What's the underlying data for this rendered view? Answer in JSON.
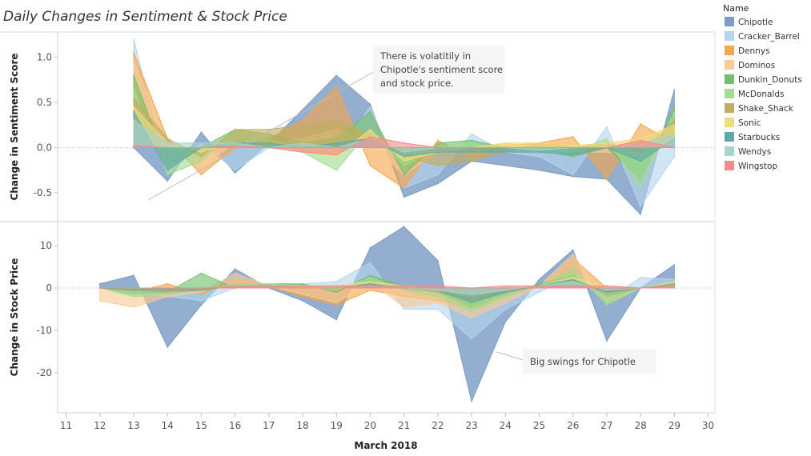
{
  "chart_data": {
    "type": "area",
    "title": "Daily Changes in Sentiment & Stock Price",
    "xlabel": "March 2018",
    "x_ticks": [
      11,
      12,
      13,
      14,
      15,
      16,
      17,
      18,
      19,
      20,
      21,
      22,
      23,
      24,
      25,
      26,
      27,
      28,
      29,
      30
    ],
    "legend_title": "Name",
    "legend_position": "right",
    "series_colors": {
      "Chipotle": "#7b9cc4",
      "Cracker_Barrel": "#b5d5ee",
      "Dennys": "#f5a54a",
      "Dominos": "#f9cc95",
      "Dunkin_Donuts": "#73c06a",
      "McDonalds": "#a3dc8f",
      "Shake_Shack": "#c2ad5f",
      "Sonic": "#f0dc7c",
      "Starbucks": "#5fa8a8",
      "Wendys": "#a7d4ce",
      "Wingstop": "#f28a8a"
    },
    "panels": [
      {
        "ylabel": "Change in Sentiment Score",
        "y_ticks": [
          1.0,
          0.5,
          0.0,
          -0.5
        ],
        "y_tick_labels": [
          "1.0",
          "0.5",
          "0.0",
          "-0.5"
        ],
        "ylim": [
          -0.82,
          1.28
        ],
        "annotation": "There is volatitily in Chipotle's sentiment score and stock price.",
        "x": [
          13,
          14,
          15,
          16,
          17,
          18,
          19,
          20,
          21,
          22,
          23,
          24,
          25,
          26,
          27,
          28,
          29
        ],
        "series": [
          {
            "name": "Chipotle",
            "values": [
              0.0,
              -0.37,
              0.17,
              -0.28,
              0.05,
              0.42,
              0.8,
              0.48,
              -0.55,
              -0.4,
              -0.15,
              -0.2,
              -0.25,
              -0.32,
              -0.35,
              -0.74,
              0.64
            ]
          },
          {
            "name": "Cracker_Barrel",
            "values": [
              1.2,
              -0.3,
              0.05,
              -0.25,
              0.0,
              -0.05,
              -0.08,
              0.45,
              -0.45,
              -0.3,
              0.15,
              -0.05,
              -0.1,
              -0.3,
              0.23,
              -0.65,
              -0.1
            ]
          },
          {
            "name": "Dennys",
            "values": [
              1.05,
              0.1,
              -0.3,
              0.0,
              0.1,
              0.3,
              0.68,
              -0.2,
              -0.45,
              0.08,
              -0.12,
              0.02,
              0.05,
              0.12,
              -0.35,
              0.26,
              0.05
            ]
          },
          {
            "name": "Dominos",
            "values": [
              0.95,
              0.05,
              -0.2,
              0.05,
              0.05,
              0.1,
              0.2,
              0.05,
              -0.3,
              -0.05,
              -0.05,
              0.05,
              0.0,
              -0.05,
              -0.05,
              -0.1,
              0.2
            ]
          },
          {
            "name": "Dunkin_Donuts",
            "values": [
              0.8,
              -0.2,
              0.0,
              0.2,
              0.15,
              0.05,
              0.1,
              0.4,
              -0.3,
              0.05,
              0.08,
              0.0,
              -0.03,
              -0.1,
              0.0,
              -0.35,
              0.45
            ]
          },
          {
            "name": "McDonalds",
            "values": [
              0.65,
              -0.3,
              -0.15,
              0.2,
              0.1,
              -0.05,
              -0.25,
              0.2,
              -0.2,
              0.0,
              0.05,
              -0.05,
              -0.05,
              -0.05,
              0.1,
              -0.45,
              0.4
            ]
          },
          {
            "name": "Shake_Shack",
            "values": [
              0.55,
              0.1,
              -0.1,
              0.2,
              0.2,
              0.25,
              0.3,
              0.15,
              -0.1,
              -0.2,
              -0.15,
              -0.05,
              0.05,
              0.0,
              0.05,
              -0.05,
              0.3
            ]
          },
          {
            "name": "Sonic",
            "values": [
              0.45,
              0.05,
              -0.05,
              0.05,
              0.0,
              -0.05,
              -0.1,
              0.2,
              -0.15,
              -0.05,
              0.0,
              0.05,
              0.05,
              0.02,
              0.05,
              0.1,
              0.25
            ]
          },
          {
            "name": "Starbucks",
            "values": [
              0.4,
              -0.25,
              0.0,
              0.05,
              0.05,
              0.0,
              0.05,
              0.1,
              -0.1,
              -0.05,
              -0.05,
              -0.05,
              -0.05,
              -0.08,
              0.0,
              -0.15,
              0.1
            ]
          },
          {
            "name": "Wendys",
            "values": [
              0.3,
              0.05,
              0.05,
              0.05,
              0.0,
              0.05,
              0.0,
              0.1,
              -0.05,
              0.0,
              0.0,
              0.0,
              -0.03,
              0.0,
              0.0,
              0.05,
              0.15
            ]
          },
          {
            "name": "Wingstop",
            "values": [
              0.02,
              0.0,
              0.0,
              0.02,
              0.0,
              -0.05,
              -0.08,
              0.12,
              0.05,
              0.0,
              0.0,
              0.0,
              0.0,
              0.0,
              0.0,
              0.08,
              0.0
            ]
          }
        ]
      },
      {
        "ylabel": "Change in Stock Price",
        "y_ticks": [
          10,
          0,
          -10,
          -20
        ],
        "y_tick_labels": [
          "10",
          "0",
          "-10",
          "-20"
        ],
        "ylim": [
          -29.5,
          15.7
        ],
        "annotation": "Big swings for Chipotle",
        "x": [
          12,
          13,
          14,
          15,
          16,
          17,
          18,
          19,
          20,
          21,
          22,
          23,
          24,
          25,
          26,
          27,
          28,
          29
        ],
        "series": [
          {
            "name": "Chipotle",
            "values": [
              1.0,
              3.0,
              -14.0,
              -4.0,
              4.5,
              0.0,
              -3.0,
              -7.5,
              9.5,
              14.5,
              6.5,
              -26.8,
              -8.0,
              2.0,
              9.0,
              -12.5,
              0.0,
              5.5
            ]
          },
          {
            "name": "Cracker_Barrel",
            "values": [
              0.0,
              -1.0,
              -2.0,
              -3.0,
              0.0,
              0.5,
              1.0,
              1.5,
              6.0,
              -5.0,
              -5.0,
              -12.0,
              -5.0,
              -1.0,
              3.0,
              -3.0,
              2.5,
              2.0
            ]
          },
          {
            "name": "Dennys",
            "values": [
              0.0,
              -1.0,
              1.0,
              -1.5,
              2.0,
              0.5,
              -2.0,
              -4.0,
              -0.5,
              -2.0,
              -3.0,
              -5.0,
              -2.0,
              0.5,
              7.0,
              0.0,
              0.0,
              1.0
            ]
          },
          {
            "name": "Dominos",
            "values": [
              -3.0,
              -4.5,
              -2.0,
              -1.0,
              3.5,
              0.5,
              -1.5,
              -3.5,
              1.5,
              -4.5,
              -3.5,
              -7.0,
              -3.5,
              0.5,
              8.0,
              -3.5,
              0.0,
              1.5
            ]
          },
          {
            "name": "Dunkin_Donuts",
            "values": [
              0.0,
              -1.5,
              -1.0,
              3.5,
              0.0,
              1.0,
              1.0,
              -1.0,
              3.0,
              0.5,
              -1.0,
              -4.5,
              -1.5,
              1.0,
              3.0,
              -2.0,
              0.0,
              1.0
            ]
          },
          {
            "name": "McDonalds",
            "values": [
              0.0,
              -2.0,
              -1.5,
              -0.5,
              1.0,
              1.0,
              0.5,
              -0.5,
              2.5,
              -0.5,
              -2.0,
              -5.5,
              -2.0,
              0.5,
              4.5,
              -4.0,
              0.0,
              0.5
            ]
          },
          {
            "name": "Shake_Shack",
            "values": [
              0.0,
              -0.5,
              -1.0,
              -0.5,
              0.5,
              0.5,
              0.5,
              0.0,
              1.0,
              0.0,
              -1.0,
              -3.0,
              -1.0,
              0.5,
              2.0,
              -1.5,
              0.0,
              0.5
            ]
          },
          {
            "name": "Sonic",
            "values": [
              0.0,
              -0.5,
              -0.5,
              -0.5,
              0.5,
              0.5,
              0.5,
              0.5,
              1.5,
              0.5,
              -0.5,
              -2.0,
              -0.5,
              0.5,
              2.5,
              0.5,
              0.0,
              0.5
            ]
          },
          {
            "name": "Starbucks",
            "values": [
              0.0,
              -0.5,
              -0.5,
              -0.5,
              0.5,
              0.5,
              0.0,
              0.0,
              1.0,
              0.0,
              -0.5,
              -3.5,
              -1.0,
              0.5,
              2.0,
              -1.0,
              0.0,
              0.5
            ]
          },
          {
            "name": "Wendys",
            "values": [
              0.0,
              0.0,
              0.0,
              0.0,
              0.5,
              0.5,
              0.0,
              0.0,
              0.5,
              0.0,
              -0.5,
              -1.5,
              -0.5,
              0.5,
              1.5,
              -0.5,
              0.0,
              0.5
            ]
          },
          {
            "name": "Wingstop",
            "values": [
              0.0,
              0.0,
              0.0,
              0.0,
              0.5,
              0.5,
              0.5,
              0.5,
              0.5,
              0.5,
              0.5,
              0.0,
              0.5,
              0.5,
              0.5,
              0.5,
              0.0,
              0.5
            ]
          }
        ]
      }
    ]
  }
}
